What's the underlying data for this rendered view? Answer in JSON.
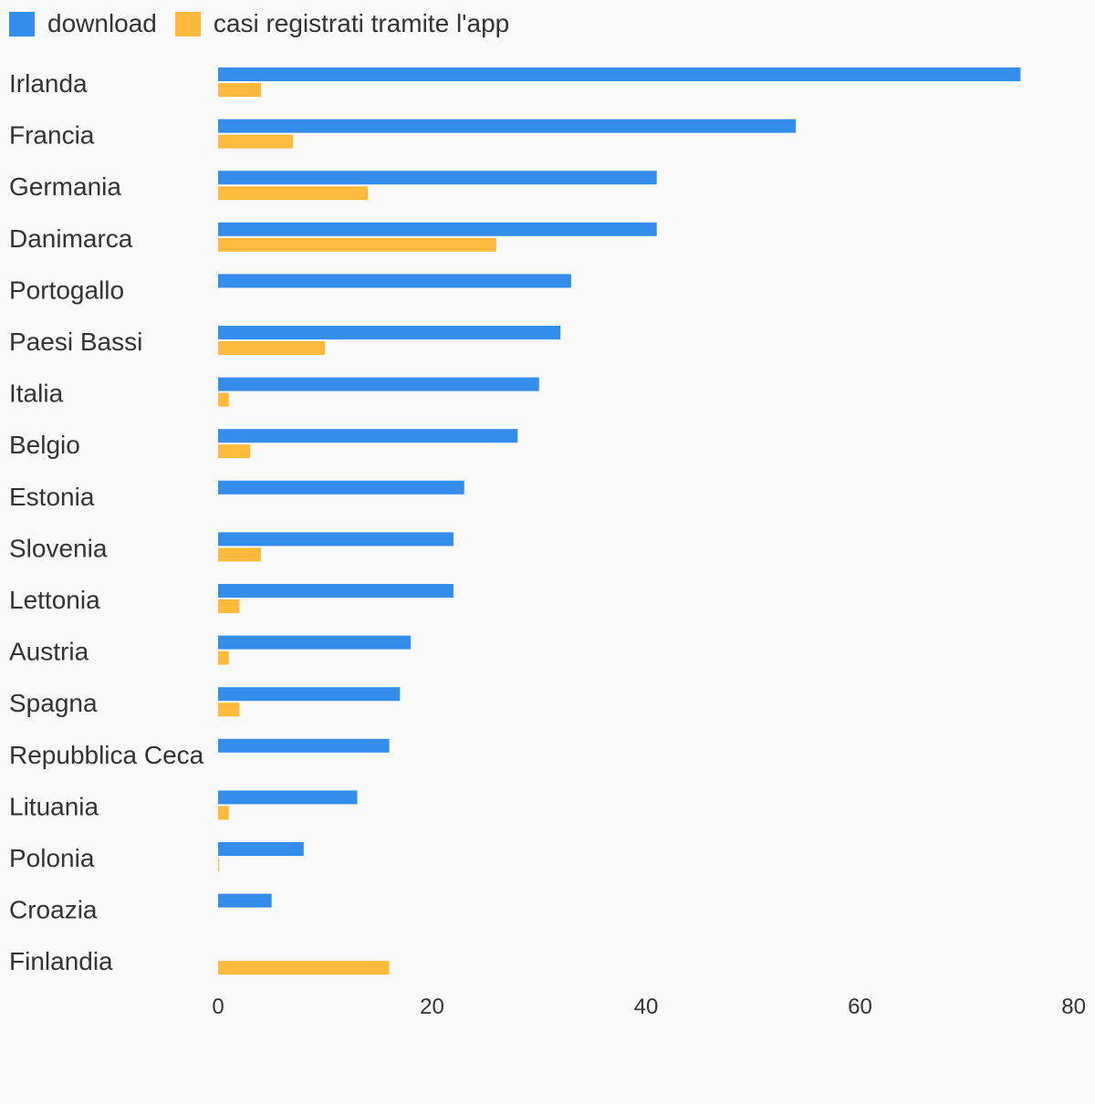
{
  "chart_data": {
    "type": "bar",
    "orientation": "horizontal",
    "title": "",
    "xlabel": "",
    "ylabel": "",
    "xlim": [
      0,
      80
    ],
    "x_ticks": [
      0,
      20,
      40,
      60,
      80
    ],
    "grid": false,
    "legend": "top-left",
    "categories": [
      "Irlanda",
      "Francia",
      "Germania",
      "Danimarca",
      "Portogallo",
      "Paesi Bassi",
      "Italia",
      "Belgio",
      "Estonia",
      "Slovenia",
      "Lettonia",
      "Austria",
      "Spagna",
      "Repubblica Ceca",
      "Lituania",
      "Polonia",
      "Croazia",
      "Finlandia"
    ],
    "series": [
      {
        "name": "download",
        "color": "#348ceb",
        "values": [
          75,
          54,
          41,
          41,
          33,
          32,
          30,
          28,
          23,
          22,
          22,
          18,
          17,
          16,
          13,
          8,
          5,
          null
        ]
      },
      {
        "name": "casi registrati tramite l'app",
        "color": "#ffb93c",
        "values": [
          4,
          7,
          14,
          26,
          null,
          10,
          1,
          3,
          null,
          4,
          2,
          1,
          2,
          null,
          1,
          0.1,
          null,
          16
        ]
      }
    ]
  }
}
